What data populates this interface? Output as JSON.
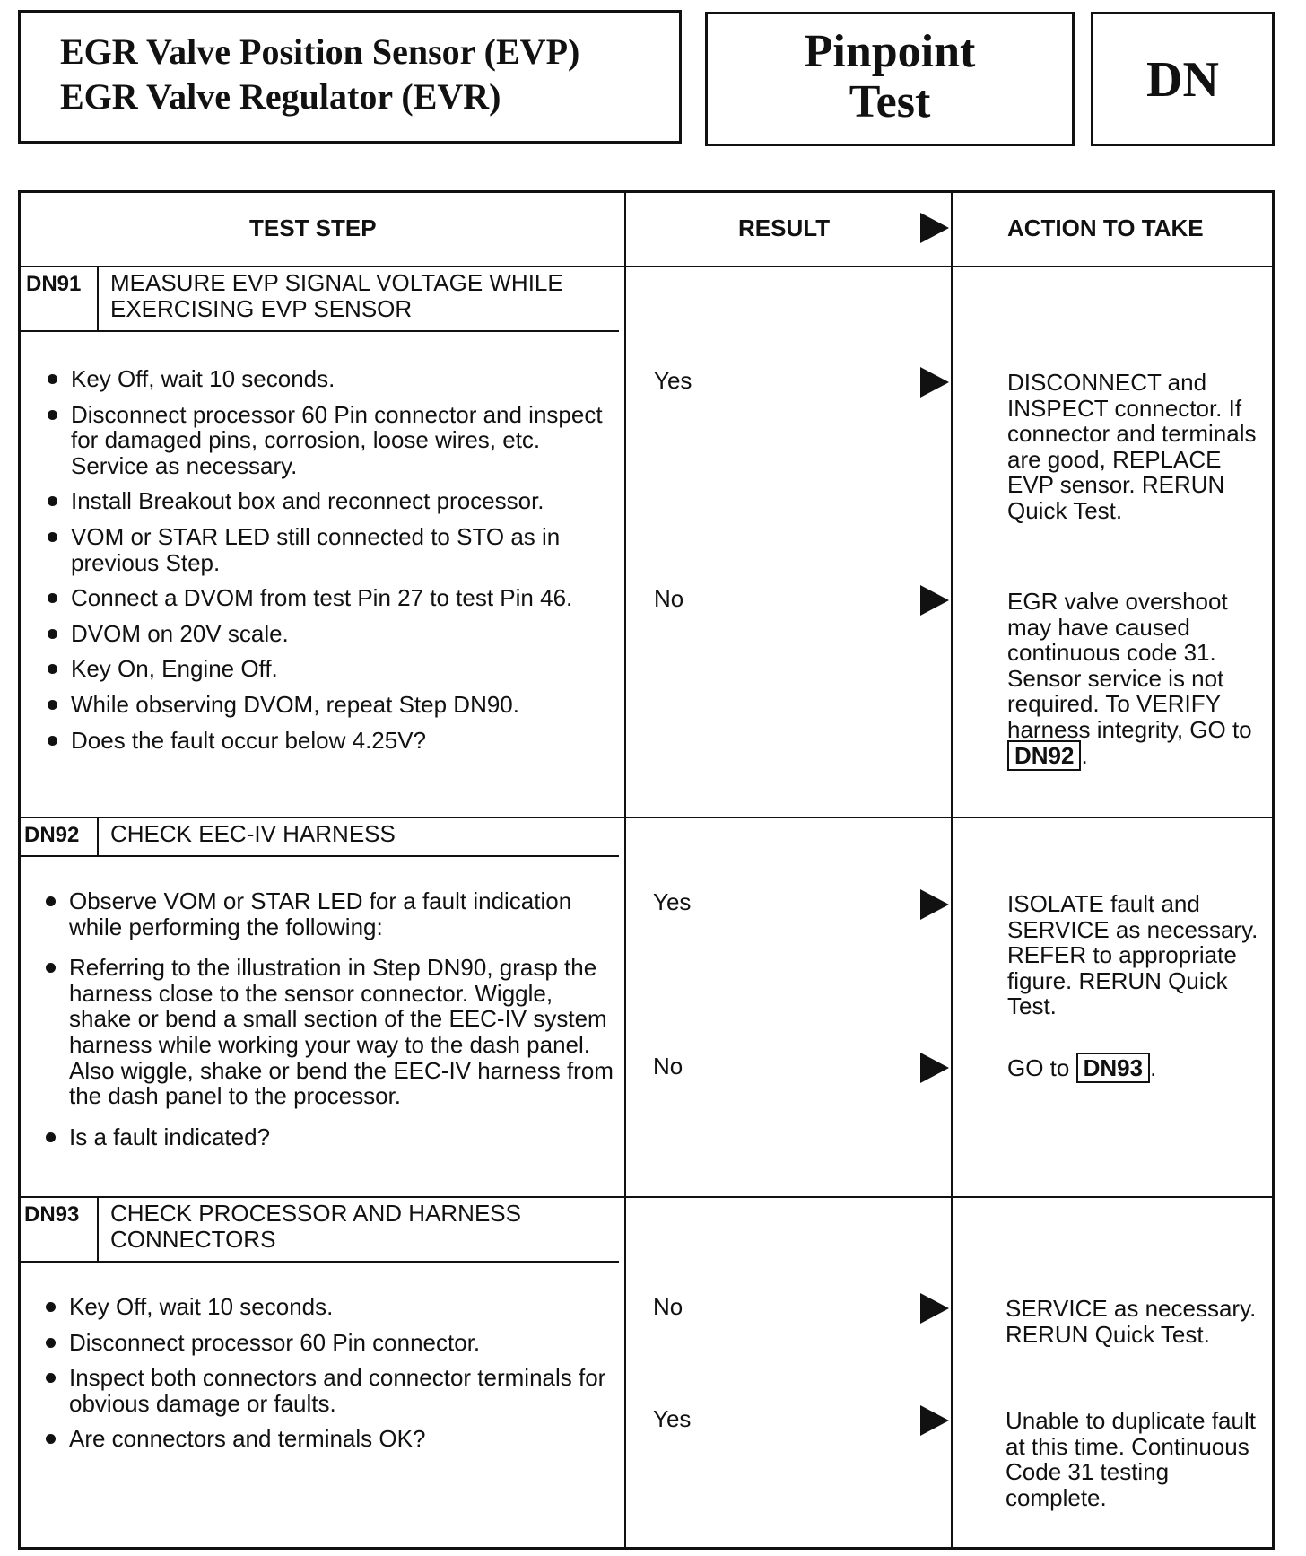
{
  "header": {
    "title_line1": "EGR Valve Position Sensor (EVP)",
    "title_line2": "EGR Valve Regulator (EVR)",
    "pinpoint_line1": "Pinpoint",
    "pinpoint_line2": "Test",
    "code": "DN"
  },
  "columns": {
    "test_step": "TEST STEP",
    "result": "RESULT",
    "action": "ACTION TO TAKE"
  },
  "steps": [
    {
      "id": "DN91",
      "title": "MEASURE EVP SIGNAL VOLTAGE WHILE EXERCISING EVP SENSOR",
      "bullets": [
        "Key Off, wait 10 seconds.",
        "Disconnect processor 60 Pin connector and inspect for damaged pins, corrosion, loose wires, etc. Service as necessary.",
        "Install Breakout box and reconnect processor.",
        "VOM or STAR LED still connected to STO as in previous Step.",
        "Connect a DVOM from test Pin 27 to test Pin 46.",
        "DVOM on 20V scale.",
        "Key On, Engine Off.",
        "While observing DVOM, repeat Step DN90.",
        "Does the fault occur below 4.25V?"
      ],
      "results": [
        {
          "label": "Yes",
          "action": "DISCONNECT and INSPECT connector. If connector and terminals are good, REPLACE EVP sensor. RERUN Quick Test."
        },
        {
          "label": "No",
          "action": "EGR valve overshoot may have caused continuous code 31. Sensor service is not required. To VERIFY harness integrity, GO to",
          "ref": "DN92"
        }
      ]
    },
    {
      "id": "DN92",
      "title": "CHECK EEC-IV HARNESS",
      "bullets": [
        "Observe VOM or STAR LED for a fault indication while performing the following:",
        "Referring to the illustration in Step DN90, grasp the harness close to the sensor connector. Wiggle, shake or bend a small section of the EEC-IV system harness while working your way to the dash panel. Also wiggle, shake or bend the EEC-IV harness from the dash panel to the processor.",
        "Is a fault indicated?"
      ],
      "results": [
        {
          "label": "Yes",
          "action": "ISOLATE fault and SERVICE as necessary. REFER to appropriate figure. RERUN Quick Test."
        },
        {
          "label": "No",
          "action": "GO to",
          "ref": "DN93"
        }
      ]
    },
    {
      "id": "DN93",
      "title": "CHECK PROCESSOR AND HARNESS CONNECTORS",
      "bullets": [
        "Key Off, wait 10 seconds.",
        "Disconnect processor 60 Pin connector.",
        "Inspect both connectors and connector terminals for obvious damage or faults.",
        "Are connectors and terminals OK?"
      ],
      "results": [
        {
          "label": "No",
          "action": "SERVICE as necessary. RERUN Quick Test."
        },
        {
          "label": "Yes",
          "action": "Unable to duplicate fault at this time. Continuous Code 31 testing complete."
        }
      ]
    }
  ]
}
